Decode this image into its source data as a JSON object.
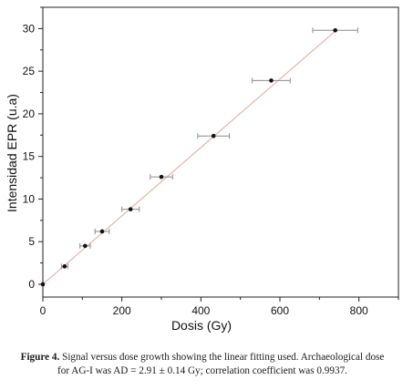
{
  "caption": {
    "label": "Figure 4.",
    "text": " Signal versus dose growth showing the linear fitting used. Archaeological dose for AG-I was AD = 2.91 ± 0.14 Gy; correlation coefficient was 0.9937."
  },
  "chart_data": {
    "type": "scatter",
    "title": "",
    "xlabel": "Dosis (Gy)",
    "ylabel": "Intensidad EPR (u.a)",
    "xlim": [
      0,
      900
    ],
    "ylim": [
      -1.5,
      32.5
    ],
    "x_ticks": [
      0,
      200,
      400,
      600,
      800
    ],
    "y_ticks": [
      0,
      5,
      10,
      15,
      20,
      25,
      30
    ],
    "x_tick_labels": [
      "0",
      "200",
      "400",
      "600",
      "800"
    ],
    "y_tick_labels": [
      "0",
      "5",
      "10",
      "15",
      "20",
      "25",
      "30"
    ],
    "grid": false,
    "legend": "none",
    "points": [
      {
        "x": 0,
        "y": 0,
        "xerr": 0
      },
      {
        "x": 55,
        "y": 2.1,
        "xerr": 8
      },
      {
        "x": 107,
        "y": 4.5,
        "xerr": 13
      },
      {
        "x": 150,
        "y": 6.2,
        "xerr": 18
      },
      {
        "x": 222,
        "y": 8.8,
        "xerr": 22
      },
      {
        "x": 300,
        "y": 12.6,
        "xerr": 28
      },
      {
        "x": 432,
        "y": 17.4,
        "xerr": 40
      },
      {
        "x": 578,
        "y": 23.9,
        "xerr": 48
      },
      {
        "x": 740,
        "y": 29.8,
        "xerr": 57
      }
    ],
    "fit": {
      "type": "linear",
      "x": [
        0,
        745
      ],
      "y": [
        0,
        29.9
      ]
    },
    "colors": {
      "points": "#111111",
      "error_bars": "#8c8c8c",
      "fit_line": "#e7b3ae",
      "axes": "#222222"
    }
  }
}
